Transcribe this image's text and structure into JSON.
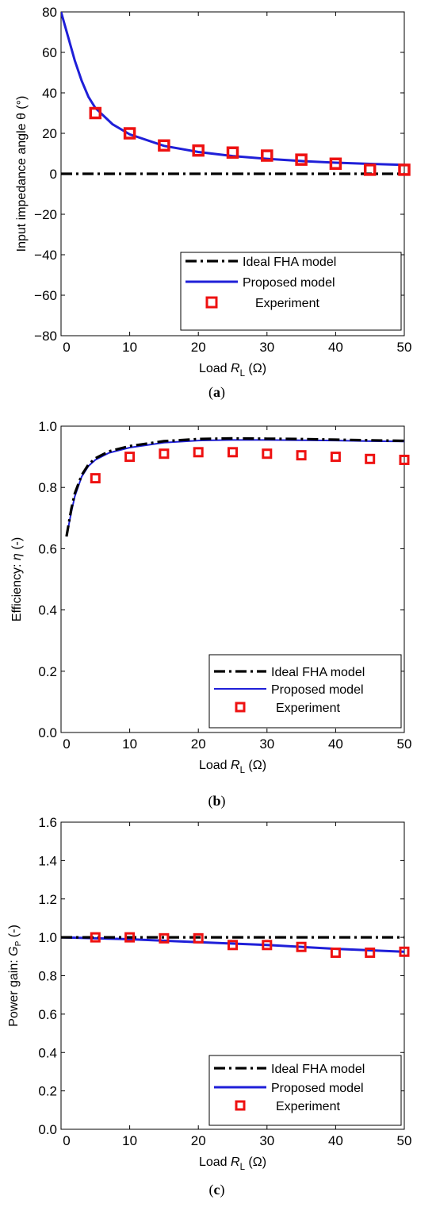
{
  "chart_data": [
    {
      "type": "line",
      "caption": "(a)",
      "ylabel": "Input impedance angle θ (°)",
      "xlabel": {
        "prefix": "Load ",
        "var": "R",
        "sub": "L",
        "unit": " (Ω)"
      },
      "xlim": [
        0,
        50
      ],
      "ylim": [
        -80,
        80
      ],
      "xticks": [
        "0",
        "10",
        "20",
        "30",
        "40",
        "50"
      ],
      "yticks": [
        "80",
        "60",
        "40",
        "20",
        "0",
        "−20",
        "−40",
        "−60",
        "−80"
      ],
      "legend": [
        "Ideal FHA model",
        "Proposed model",
        "Experiment"
      ],
      "legend_position": "bottom-right",
      "colors": {
        "ideal": "#000000",
        "proposed": "#1f1fd8",
        "experiment": "#ee1111"
      },
      "series": [
        {
          "name": "Ideal FHA model",
          "x": [
            0,
            50
          ],
          "y": [
            0,
            0
          ]
        },
        {
          "name": "Proposed model",
          "x": [
            0,
            1,
            2,
            3,
            4,
            5,
            7.5,
            10,
            15,
            20,
            25,
            30,
            35,
            40,
            45,
            50
          ],
          "y": [
            80,
            68,
            56,
            46,
            38,
            32.5,
            24.5,
            19.5,
            13.8,
            10.8,
            8.8,
            7.4,
            6.3,
            5.5,
            4.9,
            4.4
          ]
        },
        {
          "name": "Experiment",
          "x": [
            5,
            10,
            15,
            20,
            25,
            30,
            35,
            40,
            45,
            50
          ],
          "y": [
            30,
            20,
            14,
            11.5,
            10.5,
            9,
            7,
            5,
            2,
            2
          ]
        }
      ]
    },
    {
      "type": "line",
      "caption": "(b)",
      "ylabel": {
        "prefix": "Efficiency: ",
        "var": "η",
        "unit": " (-)"
      },
      "xlabel": {
        "prefix": "Load ",
        "var": "R",
        "sub": "L",
        "unit": " (Ω)"
      },
      "xlim": [
        0,
        50
      ],
      "ylim": [
        0,
        1.0
      ],
      "xticks": [
        "0",
        "10",
        "20",
        "30",
        "40",
        "50"
      ],
      "yticks": [
        "1.0",
        "0.8",
        "0.6",
        "0.4",
        "0.2",
        "0.0"
      ],
      "legend": [
        "Ideal FHA model",
        "Proposed model",
        "Experiment"
      ],
      "legend_position": "bottom-right",
      "colors": {
        "ideal": "#000000",
        "proposed": "#1f1fd8",
        "experiment": "#ee1111"
      },
      "series": [
        {
          "name": "Ideal FHA model",
          "x": [
            0.8,
            1.5,
            2,
            3,
            4,
            5,
            7,
            10,
            15,
            20,
            25,
            30,
            35,
            40,
            45,
            50
          ],
          "y": [
            0.64,
            0.73,
            0.78,
            0.84,
            0.875,
            0.895,
            0.918,
            0.935,
            0.951,
            0.958,
            0.96,
            0.959,
            0.958,
            0.956,
            0.954,
            0.952
          ]
        },
        {
          "name": "Proposed model",
          "x": [
            0.8,
            1.5,
            2,
            3,
            4,
            5,
            7,
            10,
            15,
            20,
            25,
            30,
            35,
            40,
            45,
            50
          ],
          "y": [
            0.64,
            0.72,
            0.77,
            0.835,
            0.87,
            0.89,
            0.913,
            0.93,
            0.946,
            0.953,
            0.955,
            0.955,
            0.954,
            0.953,
            0.951,
            0.95
          ]
        },
        {
          "name": "Experiment",
          "x": [
            5,
            10,
            15,
            20,
            25,
            30,
            35,
            40,
            45,
            50
          ],
          "y": [
            0.83,
            0.9,
            0.91,
            0.915,
            0.915,
            0.91,
            0.905,
            0.9,
            0.893,
            0.89
          ]
        }
      ]
    },
    {
      "type": "line",
      "caption": "(c)",
      "ylabel": {
        "prefix": "Power gain: ",
        "var": "G",
        "sub": "P",
        "unit": " (-)"
      },
      "xlabel": {
        "prefix": "Load ",
        "var": "R",
        "sub": "L",
        "unit": " (Ω)"
      },
      "xlim": [
        0,
        50
      ],
      "ylim": [
        0,
        1.6
      ],
      "xticks": [
        "0",
        "10",
        "20",
        "30",
        "40",
        "50"
      ],
      "yticks": [
        "1.6",
        "1.4",
        "1.2",
        "1.0",
        "0.8",
        "0.6",
        "0.4",
        "0.2",
        "0.0"
      ],
      "legend": [
        "Ideal FHA model",
        "Proposed model",
        "Experiment"
      ],
      "legend_position": "bottom-right",
      "colors": {
        "ideal": "#000000",
        "proposed": "#1f1fd8",
        "experiment": "#ee1111"
      },
      "series": [
        {
          "name": "Ideal FHA model",
          "x": [
            0,
            50
          ],
          "y": [
            1.0,
            1.0
          ]
        },
        {
          "name": "Proposed model",
          "x": [
            0,
            10,
            20,
            30,
            40,
            50
          ],
          "y": [
            1.0,
            0.99,
            0.975,
            0.96,
            0.94,
            0.925
          ]
        },
        {
          "name": "Experiment",
          "x": [
            5,
            10,
            15,
            20,
            25,
            30,
            35,
            40,
            45,
            50
          ],
          "y": [
            1.0,
            1.0,
            0.995,
            0.995,
            0.96,
            0.96,
            0.95,
            0.92,
            0.92,
            0.925
          ]
        }
      ]
    }
  ]
}
